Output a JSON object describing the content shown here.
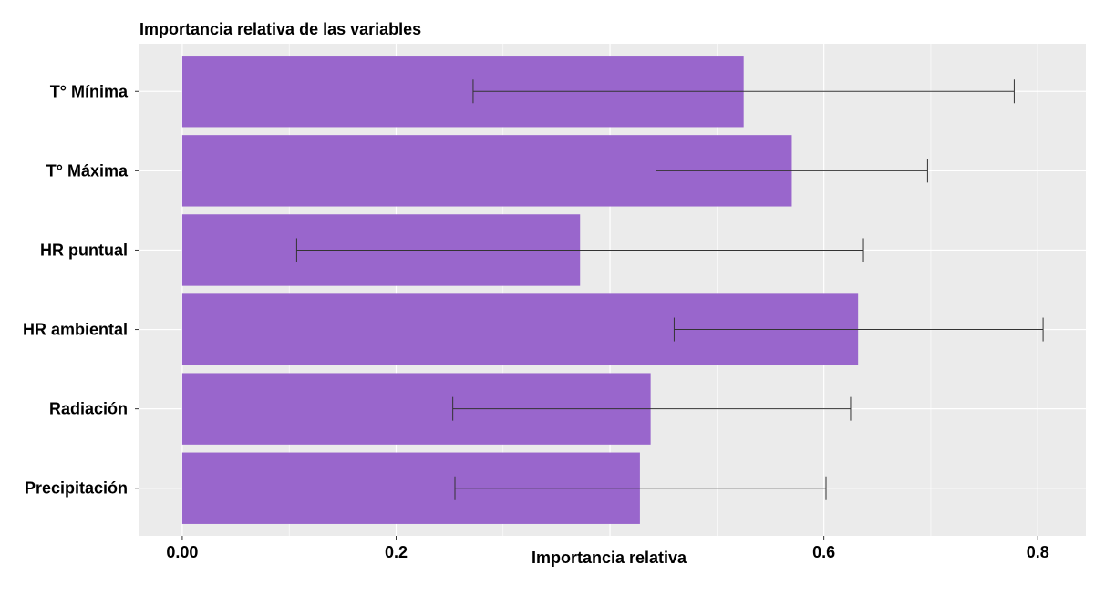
{
  "chart_data": {
    "type": "bar",
    "orientation": "horizontal",
    "title": "Importancia relativa de las variables",
    "xlabel": "Importancia relativa",
    "ylabel": "",
    "categories": [
      "T° Mínima",
      "T° Máxima",
      "HR puntual",
      "HR ambiental",
      "Radiación",
      "Precipitación"
    ],
    "values": [
      0.525,
      0.57,
      0.372,
      0.632,
      0.438,
      0.428
    ],
    "error_low": [
      0.272,
      0.443,
      0.107,
      0.46,
      0.253,
      0.255
    ],
    "error_high": [
      0.778,
      0.697,
      0.637,
      0.805,
      0.625,
      0.602
    ],
    "xlim": [
      -0.04,
      0.845
    ],
    "xticks": [
      0.0,
      0.2,
      0.6,
      0.8
    ],
    "xtick_labels": [
      "0.00",
      "0.2",
      "0.6",
      "0.8"
    ],
    "grid": true,
    "colors": {
      "bar": "#9966CC",
      "panel": "#EBEBEB",
      "grid": "#FFFFFF",
      "errorbar": "#333333"
    }
  }
}
